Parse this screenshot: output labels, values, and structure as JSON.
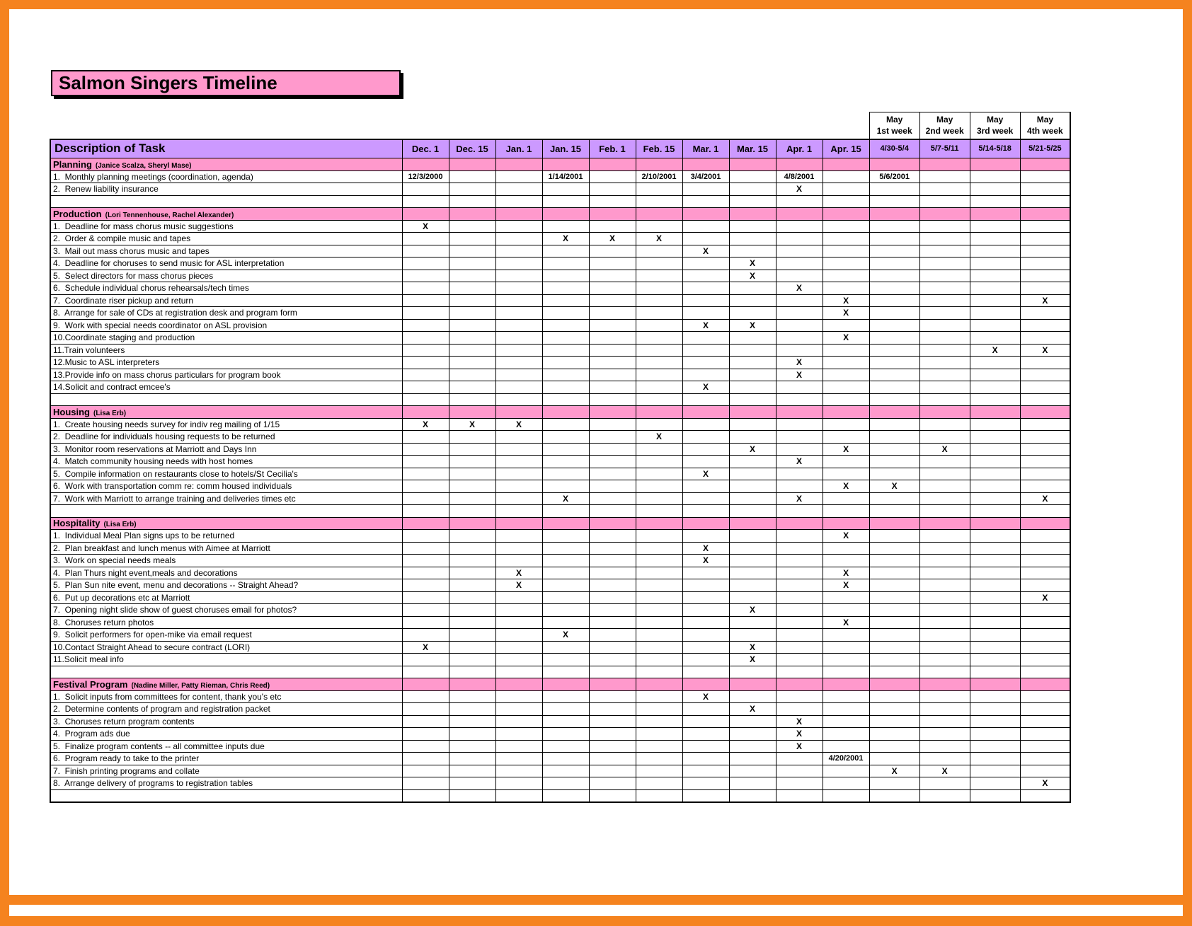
{
  "colors": {
    "frame_orange": "#F5831F",
    "pink": "#FF99CC",
    "purple": "#CC99FF"
  },
  "title": {
    "text": "Salmon Singers Timeline"
  },
  "table": {
    "task_header": "Description of Task",
    "columns": [
      "Dec. 1",
      "Dec. 15",
      "Jan. 1",
      "Jan. 15",
      "Feb. 1",
      "Feb. 15",
      "Mar. 1",
      "Mar. 15",
      "Apr. 1",
      "Apr. 15",
      "4/30-5/4",
      "5/7-5/11",
      "5/14-5/18",
      "5/21-5/25"
    ],
    "may_headers": [
      [
        "May",
        "1st week"
      ],
      [
        "May",
        "2nd week"
      ],
      [
        "May",
        "3rd week"
      ],
      [
        "May",
        "4th week"
      ]
    ],
    "sections": [
      {
        "name": "Planning",
        "people": "(Janice Scalza, Sheryl Mase)",
        "rows": [
          {
            "task": "1.  Monthly planning meetings (coordination, agenda)",
            "cells": [
              "12/3/2000",
              "",
              "",
              "1/14/2001",
              "",
              "2/10/2001",
              "3/4/2001",
              "",
              "4/8/2001",
              "",
              "5/6/2001",
              "",
              "",
              ""
            ]
          },
          {
            "task": "2.  Renew liability insurance",
            "cells": [
              "",
              "",
              "",
              "",
              "",
              "",
              "",
              "",
              "X",
              "",
              "",
              "",
              "",
              ""
            ]
          }
        ]
      },
      {
        "name": "Production",
        "people": "(Lori Tennenhouse, Rachel Alexander)",
        "rows": [
          {
            "task": "1.  Deadline for mass chorus music suggestions",
            "cells": [
              "X",
              "",
              "",
              "",
              "",
              "",
              "",
              "",
              "",
              "",
              "",
              "",
              "",
              ""
            ]
          },
          {
            "task": "2.  Order & compile music and tapes",
            "cells": [
              "",
              "",
              "",
              "X",
              "X",
              "X",
              "",
              "",
              "",
              "",
              "",
              "",
              "",
              ""
            ]
          },
          {
            "task": "3.  Mail out mass chorus music and tapes",
            "cells": [
              "",
              "",
              "",
              "",
              "",
              "",
              "X",
              "",
              "",
              "",
              "",
              "",
              "",
              ""
            ]
          },
          {
            "task": "4.  Deadline for choruses to send music for ASL interpretation",
            "cells": [
              "",
              "",
              "",
              "",
              "",
              "",
              "",
              "X",
              "",
              "",
              "",
              "",
              "",
              ""
            ]
          },
          {
            "task": "5.  Select directors for mass chorus pieces",
            "cells": [
              "",
              "",
              "",
              "",
              "",
              "",
              "",
              "X",
              "",
              "",
              "",
              "",
              "",
              ""
            ]
          },
          {
            "task": "6.  Schedule individual chorus rehearsals/tech times",
            "cells": [
              "",
              "",
              "",
              "",
              "",
              "",
              "",
              "",
              "X",
              "",
              "",
              "",
              "",
              ""
            ]
          },
          {
            "task": "7.  Coordinate riser pickup and return",
            "cells": [
              "",
              "",
              "",
              "",
              "",
              "",
              "",
              "",
              "",
              "X",
              "",
              "",
              "",
              "X"
            ]
          },
          {
            "task": "8.  Arrange for sale of CDs at registration desk and program form",
            "cells": [
              "",
              "",
              "",
              "",
              "",
              "",
              "",
              "",
              "",
              "X",
              "",
              "",
              "",
              ""
            ]
          },
          {
            "task": "9.  Work with special needs coordinator on ASL provision",
            "cells": [
              "",
              "",
              "",
              "",
              "",
              "",
              "X",
              "X",
              "",
              "",
              "",
              "",
              "",
              ""
            ]
          },
          {
            "task": "10.Coordinate staging and production",
            "cells": [
              "",
              "",
              "",
              "",
              "",
              "",
              "",
              "",
              "",
              "X",
              "",
              "",
              "",
              ""
            ]
          },
          {
            "task": "11.Train volunteers",
            "cells": [
              "",
              "",
              "",
              "",
              "",
              "",
              "",
              "",
              "",
              "",
              "",
              "",
              "X",
              "X"
            ]
          },
          {
            "task": "12.Music to ASL interpreters",
            "cells": [
              "",
              "",
              "",
              "",
              "",
              "",
              "",
              "",
              "X",
              "",
              "",
              "",
              "",
              ""
            ]
          },
          {
            "task": "13.Provide info on mass chorus particulars for program book",
            "cells": [
              "",
              "",
              "",
              "",
              "",
              "",
              "",
              "",
              "X",
              "",
              "",
              "",
              "",
              ""
            ]
          },
          {
            "task": "14.Solicit and contract emcee's",
            "cells": [
              "",
              "",
              "",
              "",
              "",
              "",
              "X",
              "",
              "",
              "",
              "",
              "",
              "",
              ""
            ]
          }
        ]
      },
      {
        "name": "Housing",
        "people": "(Lisa Erb)",
        "rows": [
          {
            "task": "1.  Create housing needs survey for indiv reg mailing of 1/15",
            "cells": [
              "X",
              "X",
              "X",
              "",
              "",
              "",
              "",
              "",
              "",
              "",
              "",
              "",
              "",
              ""
            ]
          },
          {
            "task": "2.  Deadline for individuals housing requests to be returned",
            "cells": [
              "",
              "",
              "",
              "",
              "",
              "X",
              "",
              "",
              "",
              "",
              "",
              "",
              "",
              ""
            ]
          },
          {
            "task": "3.  Monitor room reservations at Marriott and Days Inn",
            "cells": [
              "",
              "",
              "",
              "",
              "",
              "",
              "",
              "X",
              "",
              "X",
              "",
              "X",
              "",
              ""
            ]
          },
          {
            "task": "4.  Match community housing needs with host homes",
            "cells": [
              "",
              "",
              "",
              "",
              "",
              "",
              "",
              "",
              "X",
              "",
              "",
              "",
              "",
              ""
            ]
          },
          {
            "task": "5.  Compile information on restaurants close to hotels/St Cecilia's",
            "cells": [
              "",
              "",
              "",
              "",
              "",
              "",
              "X",
              "",
              "",
              "",
              "",
              "",
              "",
              ""
            ]
          },
          {
            "task": "6.  Work with transportation comm re: comm housed individuals",
            "cells": [
              "",
              "",
              "",
              "",
              "",
              "",
              "",
              "",
              "",
              "X",
              "X",
              "",
              "",
              ""
            ]
          },
          {
            "task": "7.  Work with Marriott to arrange training and deliveries times etc",
            "cells": [
              "",
              "",
              "",
              "X",
              "",
              "",
              "",
              "",
              "X",
              "",
              "",
              "",
              "",
              "X"
            ]
          }
        ]
      },
      {
        "name": "Hospitality",
        "people": "(Lisa Erb)",
        "rows": [
          {
            "task": "1.  Individual Meal Plan signs ups to be returned",
            "cells": [
              "",
              "",
              "",
              "",
              "",
              "",
              "",
              "",
              "",
              "X",
              "",
              "",
              "",
              ""
            ]
          },
          {
            "task": "2.  Plan breakfast and lunch menus with Aimee at Marriott",
            "cells": [
              "",
              "",
              "",
              "",
              "",
              "",
              "X",
              "",
              "",
              "",
              "",
              "",
              "",
              ""
            ]
          },
          {
            "task": "3.  Work on special needs meals",
            "cells": [
              "",
              "",
              "",
              "",
              "",
              "",
              "X",
              "",
              "",
              "",
              "",
              "",
              "",
              ""
            ]
          },
          {
            "task": "4.  Plan Thurs night event,meals and decorations",
            "cells": [
              "",
              "",
              "X",
              "",
              "",
              "",
              "",
              "",
              "",
              "X",
              "",
              "",
              "",
              ""
            ]
          },
          {
            "task": "5.  Plan Sun nite event, menu and decorations -- Straight Ahead?",
            "cells": [
              "",
              "",
              "X",
              "",
              "",
              "",
              "",
              "",
              "",
              "X",
              "",
              "",
              "",
              ""
            ]
          },
          {
            "task": "6.  Put up decorations etc at Marriott",
            "cells": [
              "",
              "",
              "",
              "",
              "",
              "",
              "",
              "",
              "",
              "",
              "",
              "",
              "",
              "X"
            ]
          },
          {
            "task": "7.  Opening night slide show of guest choruses email for photos?",
            "cells": [
              "",
              "",
              "",
              "",
              "",
              "",
              "",
              "X",
              "",
              "",
              "",
              "",
              "",
              ""
            ]
          },
          {
            "task": "8.  Choruses return photos",
            "cells": [
              "",
              "",
              "",
              "",
              "",
              "",
              "",
              "",
              "",
              "X",
              "",
              "",
              "",
              ""
            ]
          },
          {
            "task": "9.  Solicit performers for open-mike via email request",
            "cells": [
              "",
              "",
              "",
              "X",
              "",
              "",
              "",
              "",
              "",
              "",
              "",
              "",
              "",
              ""
            ]
          },
          {
            "task": "10.Contact Straight Ahead to secure contract (LORI)",
            "cells": [
              "X",
              "",
              "",
              "",
              "",
              "",
              "",
              "X",
              "",
              "",
              "",
              "",
              "",
              ""
            ]
          },
          {
            "task": "11.Solicit meal info",
            "cells": [
              "",
              "",
              "",
              "",
              "",
              "",
              "",
              "X",
              "",
              "",
              "",
              "",
              "",
              ""
            ]
          }
        ]
      },
      {
        "name": "Festival Program",
        "people": "(Nadine Miller, Patty Rieman, Chris Reed)",
        "rows": [
          {
            "task": "1.  Solicit inputs from committees for content, thank you's etc",
            "cells": [
              "",
              "",
              "",
              "",
              "",
              "",
              "X",
              "",
              "",
              "",
              "",
              "",
              "",
              ""
            ]
          },
          {
            "task": "2.  Determine contents of program and registration packet",
            "cells": [
              "",
              "",
              "",
              "",
              "",
              "",
              "",
              "X",
              "",
              "",
              "",
              "",
              "",
              ""
            ]
          },
          {
            "task": "3.  Choruses return program contents",
            "cells": [
              "",
              "",
              "",
              "",
              "",
              "",
              "",
              "",
              "X",
              "",
              "",
              "",
              "",
              ""
            ]
          },
          {
            "task": "4.  Program ads due",
            "cells": [
              "",
              "",
              "",
              "",
              "",
              "",
              "",
              "",
              "X",
              "",
              "",
              "",
              "",
              ""
            ]
          },
          {
            "task": "5.  Finalize program contents -- all committee inputs due",
            "cells": [
              "",
              "",
              "",
              "",
              "",
              "",
              "",
              "",
              "X",
              "",
              "",
              "",
              "",
              ""
            ]
          },
          {
            "task": "6.  Program ready to take to the printer",
            "cells": [
              "",
              "",
              "",
              "",
              "",
              "",
              "",
              "",
              "",
              "4/20/2001",
              "",
              "",
              "",
              ""
            ]
          },
          {
            "task": "7.  Finish printing programs and collate",
            "cells": [
              "",
              "",
              "",
              "",
              "",
              "",
              "",
              "",
              "",
              "",
              "X",
              "X",
              "",
              ""
            ]
          },
          {
            "task": "8.  Arrange delivery of programs to registration tables",
            "cells": [
              "",
              "",
              "",
              "",
              "",
              "",
              "",
              "",
              "",
              "",
              "",
              "",
              "",
              "X"
            ]
          }
        ]
      }
    ]
  }
}
